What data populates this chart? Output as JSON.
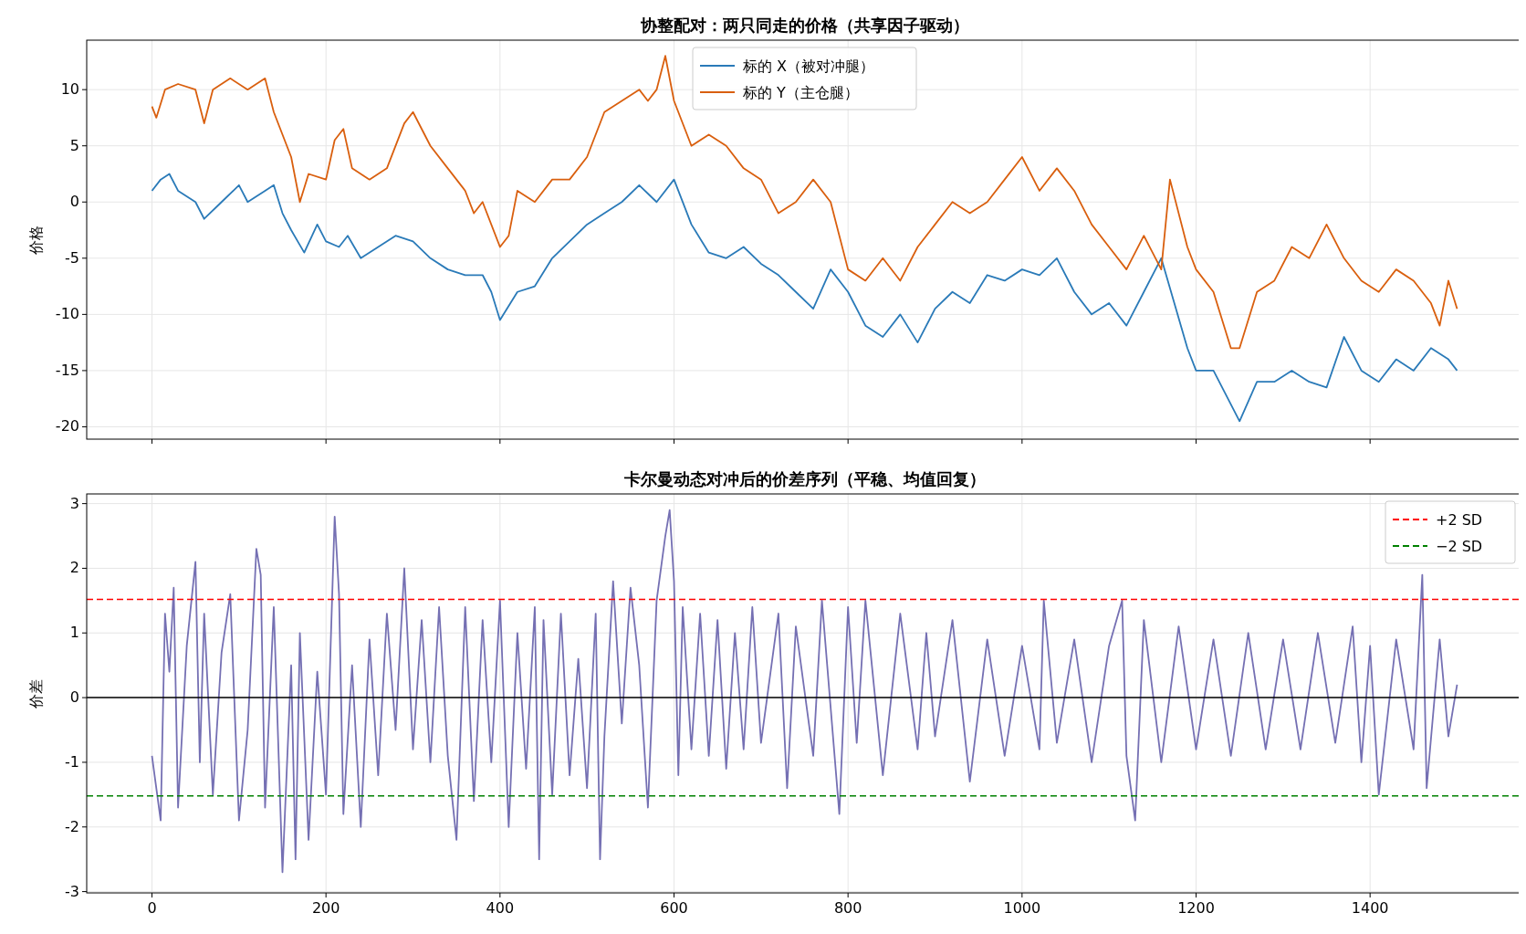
{
  "chart_data": [
    {
      "type": "line",
      "title": "协整配对：两只同走的价格（共享因子驱动）",
      "ylabel": "价格",
      "xlim": [
        -75,
        1575
      ],
      "ylim": [
        -21.1,
        14.4
      ],
      "xticks": [
        0,
        200,
        400,
        600,
        800,
        1000,
        1200,
        1400
      ],
      "yticks": [
        10,
        5,
        0,
        -5,
        -10,
        -15,
        -20
      ],
      "tick_labels": "y",
      "grid": true,
      "legend": "top",
      "series": [
        {
          "name": "标的 X（被对冲腿）",
          "color": "#2a7ab8",
          "x": [
            0,
            10,
            20,
            30,
            50,
            60,
            80,
            100,
            110,
            130,
            140,
            150,
            160,
            175,
            190,
            200,
            215,
            225,
            240,
            260,
            280,
            300,
            320,
            340,
            360,
            380,
            390,
            400,
            420,
            440,
            460,
            480,
            500,
            520,
            540,
            560,
            580,
            600,
            620,
            640,
            660,
            680,
            700,
            720,
            740,
            760,
            780,
            800,
            820,
            840,
            860,
            880,
            900,
            920,
            940,
            960,
            980,
            1000,
            1020,
            1040,
            1060,
            1080,
            1100,
            1120,
            1140,
            1160,
            1175,
            1190,
            1200,
            1220,
            1240,
            1250,
            1270,
            1290,
            1310,
            1330,
            1350,
            1370,
            1390,
            1410,
            1430,
            1450,
            1470,
            1490,
            1500
          ],
          "values": [
            1,
            2,
            2.5,
            1,
            0,
            -1.5,
            0,
            1.5,
            0,
            1,
            1.5,
            -1,
            -2.5,
            -4.5,
            -2,
            -3.5,
            -4,
            -3,
            -5,
            -4,
            -3,
            -3.5,
            -5,
            -6,
            -6.5,
            -6.5,
            -8,
            -10.5,
            -8,
            -7.5,
            -5,
            -3.5,
            -2,
            -1,
            0,
            1.5,
            0,
            2,
            -2,
            -4.5,
            -5,
            -4,
            -5.5,
            -6.5,
            -8,
            -9.5,
            -6,
            -8,
            -11,
            -12,
            -10,
            -12.5,
            -9.5,
            -8,
            -9,
            -6.5,
            -7,
            -6,
            -6.5,
            -5,
            -8,
            -10,
            -9,
            -11,
            -8,
            -5,
            -9,
            -13,
            -15,
            -15,
            -18,
            -19.5,
            -16,
            -16,
            -15,
            -16,
            -16.5,
            -12,
            -15,
            -16,
            -14,
            -15,
            -13,
            -14,
            -15
          ]
        },
        {
          "name": "标的 Y（主仓腿）",
          "color": "#d95f0e",
          "x": [
            0,
            5,
            15,
            30,
            50,
            60,
            70,
            90,
            110,
            130,
            140,
            160,
            170,
            180,
            200,
            210,
            220,
            230,
            250,
            270,
            290,
            300,
            320,
            340,
            360,
            370,
            380,
            400,
            410,
            420,
            440,
            460,
            480,
            500,
            520,
            540,
            560,
            570,
            580,
            590,
            600,
            620,
            640,
            660,
            680,
            700,
            720,
            740,
            760,
            780,
            800,
            820,
            840,
            860,
            880,
            900,
            920,
            940,
            960,
            980,
            1000,
            1020,
            1040,
            1060,
            1080,
            1100,
            1120,
            1140,
            1160,
            1170,
            1190,
            1200,
            1220,
            1240,
            1250,
            1270,
            1290,
            1310,
            1330,
            1350,
            1370,
            1390,
            1410,
            1430,
            1450,
            1470,
            1480,
            1490,
            1500
          ],
          "values": [
            8.5,
            7.5,
            10,
            10.5,
            10,
            7,
            10,
            11,
            10,
            11,
            8,
            4,
            0,
            2.5,
            2,
            5.5,
            6.5,
            3,
            2,
            3,
            7,
            8,
            5,
            3,
            1,
            -1,
            0,
            -4,
            -3,
            1,
            0,
            2,
            2,
            4,
            8,
            9,
            10,
            9,
            10,
            13,
            9,
            5,
            6,
            5,
            3,
            2,
            -1,
            0,
            2,
            0,
            -6,
            -7,
            -5,
            -7,
            -4,
            -2,
            0,
            -1,
            0,
            2,
            4,
            1,
            3,
            1,
            -2,
            -4,
            -6,
            -3,
            -6,
            2,
            -4,
            -6,
            -8,
            -13,
            -13,
            -8,
            -7,
            -4,
            -5,
            -2,
            -5,
            -7,
            -8,
            -6,
            -7,
            -9,
            -11,
            -7,
            -9.5
          ]
        }
      ]
    },
    {
      "type": "line",
      "title": "卡尔曼动态对冲后的价差序列（平稳、均值回复）",
      "ylabel": "价差",
      "xlim": [
        -75,
        1575
      ],
      "ylim": [
        -3.02,
        3.15
      ],
      "xticks": [
        0,
        200,
        400,
        600,
        800,
        1000,
        1200,
        1400
      ],
      "yticks": [
        -3,
        -2,
        -1,
        0,
        1,
        2,
        3
      ],
      "grid": true,
      "legend": "top right",
      "ref_lines": [
        {
          "axis": "y",
          "value": 1.52,
          "label": "+2 SD",
          "color": "#ff0000",
          "line_style": "dashed"
        },
        {
          "axis": "y",
          "value": -1.52,
          "label": "−2 SD",
          "color": "#008000",
          "line_style": "dashed"
        },
        {
          "axis": "y",
          "value": 0,
          "color": "#000000",
          "line_style": "solid"
        }
      ],
      "series": [
        {
          "color": "#7570b3",
          "x": [
            0,
            10,
            15,
            20,
            25,
            30,
            40,
            50,
            55,
            60,
            70,
            80,
            90,
            100,
            110,
            120,
            125,
            130,
            140,
            150,
            160,
            165,
            170,
            180,
            190,
            200,
            210,
            215,
            220,
            230,
            240,
            250,
            260,
            270,
            280,
            290,
            300,
            310,
            320,
            330,
            340,
            350,
            360,
            370,
            380,
            390,
            400,
            410,
            420,
            430,
            440,
            445,
            450,
            460,
            470,
            480,
            490,
            500,
            510,
            515,
            520,
            530,
            540,
            550,
            560,
            570,
            580,
            590,
            595,
            600,
            605,
            610,
            620,
            630,
            640,
            650,
            660,
            670,
            680,
            690,
            700,
            720,
            730,
            740,
            760,
            770,
            790,
            800,
            810,
            820,
            840,
            860,
            880,
            890,
            900,
            920,
            940,
            960,
            980,
            1000,
            1020,
            1025,
            1040,
            1060,
            1080,
            1100,
            1115,
            1120,
            1130,
            1140,
            1160,
            1180,
            1200,
            1220,
            1240,
            1260,
            1280,
            1300,
            1320,
            1340,
            1360,
            1380,
            1390,
            1400,
            1410,
            1430,
            1450,
            1460,
            1465,
            1480,
            1490,
            1500
          ],
          "values": [
            -0.9,
            -1.9,
            1.3,
            0.4,
            1.7,
            -1.7,
            0.8,
            2.1,
            -1.0,
            1.3,
            -1.5,
            0.7,
            1.6,
            -1.9,
            -0.5,
            2.3,
            1.9,
            -1.7,
            1.4,
            -2.7,
            0.5,
            -2.5,
            1.0,
            -2.2,
            0.4,
            -1.5,
            2.8,
            1.6,
            -1.8,
            0.5,
            -2.0,
            0.9,
            -1.2,
            1.3,
            -0.5,
            2.0,
            -0.8,
            1.2,
            -1.0,
            1.4,
            -0.9,
            -2.2,
            1.4,
            -1.6,
            1.2,
            -1.0,
            1.5,
            -2.0,
            1.0,
            -1.1,
            1.4,
            -2.5,
            1.2,
            -1.5,
            1.3,
            -1.2,
            0.6,
            -1.4,
            1.3,
            -2.5,
            -0.6,
            1.8,
            -0.4,
            1.7,
            0.5,
            -1.7,
            1.5,
            2.5,
            2.9,
            1.8,
            -1.2,
            1.4,
            -0.8,
            1.3,
            -0.9,
            1.2,
            -1.1,
            1.0,
            -0.8,
            1.4,
            -0.7,
            1.3,
            -1.4,
            1.1,
            -0.9,
            1.5,
            -1.8,
            1.4,
            -0.7,
            1.5,
            -1.2,
            1.3,
            -0.8,
            1.0,
            -0.6,
            1.2,
            -1.3,
            0.9,
            -0.9,
            0.8,
            -0.8,
            1.5,
            -0.7,
            0.9,
            -1.0,
            0.8,
            1.5,
            -0.9,
            -1.9,
            1.2,
            -1.0,
            1.1,
            -0.8,
            0.9,
            -0.9,
            1.0,
            -0.8,
            0.9,
            -0.8,
            1.0,
            -0.7,
            1.1,
            -1.0,
            0.8,
            -1.5,
            0.9,
            -0.8,
            1.9,
            -1.4,
            0.9,
            -0.6,
            0.2
          ]
        }
      ]
    }
  ]
}
